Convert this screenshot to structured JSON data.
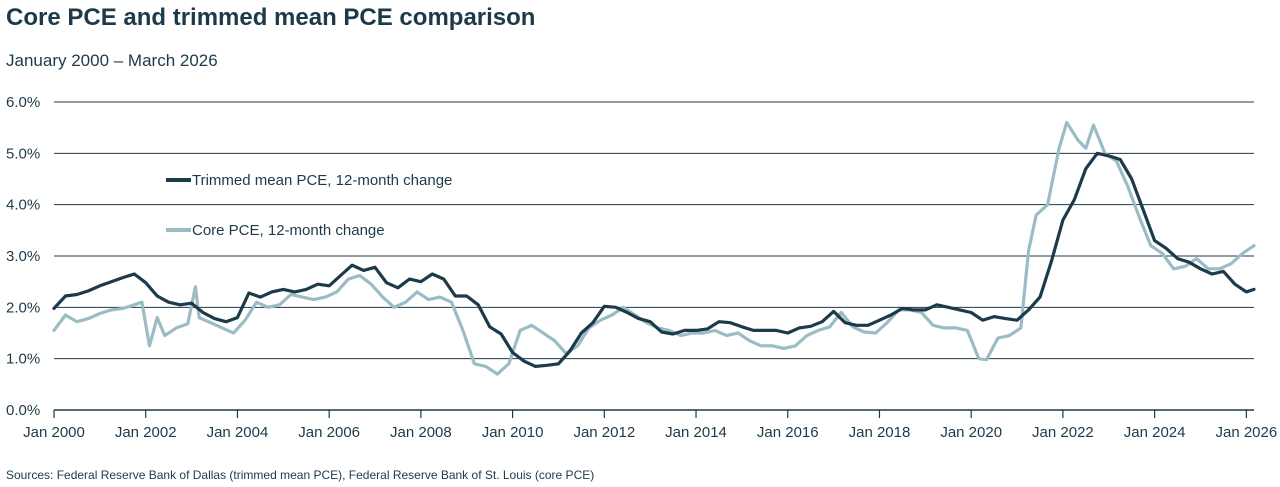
{
  "title": "Core PCE and trimmed mean PCE comparison",
  "subtitle": "January 2000 – March 2026",
  "source": "Sources: Federal Reserve Bank of Dallas (trimmed mean PCE), Federal Reserve Bank of St. Louis (core PCE)",
  "colors": {
    "trimmed": "#1d3a4a",
    "core": "#9bbcc4",
    "grid": "#1d3a4a",
    "text": "#1d3a4a"
  },
  "chart_data": {
    "type": "line",
    "title": "Core PCE and trimmed mean PCE comparison",
    "subtitle": "January 2000 – March 2026",
    "xlim": [
      "2000-01",
      "2026-03"
    ],
    "ylim": [
      0,
      6
    ],
    "y_ticks": [
      0,
      1,
      2,
      3,
      4,
      5,
      6
    ],
    "y_tick_labels": [
      "0.0%",
      "1.0%",
      "2.0%",
      "3.0%",
      "4.0%",
      "5.0%",
      "6.0%"
    ],
    "x_ticks": [
      "2000-01",
      "2002-01",
      "2004-01",
      "2006-01",
      "2008-01",
      "2010-01",
      "2012-01",
      "2014-01",
      "2016-01",
      "2018-01",
      "2020-01",
      "2022-01",
      "2024-01",
      "2026-01"
    ],
    "x_tick_labels": [
      "Jan 2000",
      "Jan 2002",
      "Jan 2004",
      "Jan 2006",
      "Jan 2008",
      "Jan 2010",
      "Jan 2012",
      "Jan 2014",
      "Jan 2016",
      "Jan 2018",
      "Jan 2020",
      "Jan 2022",
      "Jan 2024",
      "Jan 2026"
    ],
    "grid": "horizontal",
    "legend_position": "upper-left",
    "series": [
      {
        "name": "Trimmed mean PCE, 12-month change",
        "color": "#1d3a4a",
        "points": [
          [
            "2000-01",
            1.98
          ],
          [
            "2000-04",
            2.22
          ],
          [
            "2000-07",
            2.25
          ],
          [
            "2000-10",
            2.32
          ],
          [
            "2001-01",
            2.42
          ],
          [
            "2001-04",
            2.5
          ],
          [
            "2001-07",
            2.58
          ],
          [
            "2001-10",
            2.65
          ],
          [
            "2002-01",
            2.48
          ],
          [
            "2002-04",
            2.22
          ],
          [
            "2002-07",
            2.1
          ],
          [
            "2002-10",
            2.05
          ],
          [
            "2003-01",
            2.08
          ],
          [
            "2003-04",
            1.9
          ],
          [
            "2003-07",
            1.78
          ],
          [
            "2003-10",
            1.72
          ],
          [
            "2004-01",
            1.8
          ],
          [
            "2004-04",
            2.28
          ],
          [
            "2004-07",
            2.2
          ],
          [
            "2004-10",
            2.3
          ],
          [
            "2005-01",
            2.35
          ],
          [
            "2005-04",
            2.3
          ],
          [
            "2005-07",
            2.35
          ],
          [
            "2005-10",
            2.45
          ],
          [
            "2006-01",
            2.42
          ],
          [
            "2006-04",
            2.62
          ],
          [
            "2006-07",
            2.82
          ],
          [
            "2006-10",
            2.72
          ],
          [
            "2007-01",
            2.78
          ],
          [
            "2007-04",
            2.48
          ],
          [
            "2007-07",
            2.38
          ],
          [
            "2007-10",
            2.55
          ],
          [
            "2008-01",
            2.5
          ],
          [
            "2008-04",
            2.65
          ],
          [
            "2008-07",
            2.55
          ],
          [
            "2008-10",
            2.22
          ],
          [
            "2009-01",
            2.22
          ],
          [
            "2009-04",
            2.05
          ],
          [
            "2009-07",
            1.62
          ],
          [
            "2009-10",
            1.48
          ],
          [
            "2010-01",
            1.12
          ],
          [
            "2010-04",
            0.95
          ],
          [
            "2010-07",
            0.85
          ],
          [
            "2010-10",
            0.87
          ],
          [
            "2011-01",
            0.9
          ],
          [
            "2011-04",
            1.15
          ],
          [
            "2011-07",
            1.5
          ],
          [
            "2011-10",
            1.7
          ],
          [
            "2012-01",
            2.02
          ],
          [
            "2012-04",
            2.0
          ],
          [
            "2012-07",
            1.9
          ],
          [
            "2012-10",
            1.78
          ],
          [
            "2013-01",
            1.72
          ],
          [
            "2013-04",
            1.52
          ],
          [
            "2013-07",
            1.48
          ],
          [
            "2013-10",
            1.55
          ],
          [
            "2014-01",
            1.55
          ],
          [
            "2014-04",
            1.58
          ],
          [
            "2014-07",
            1.72
          ],
          [
            "2014-10",
            1.7
          ],
          [
            "2015-01",
            1.62
          ],
          [
            "2015-04",
            1.55
          ],
          [
            "2015-07",
            1.55
          ],
          [
            "2015-10",
            1.55
          ],
          [
            "2016-01",
            1.5
          ],
          [
            "2016-04",
            1.6
          ],
          [
            "2016-07",
            1.63
          ],
          [
            "2016-10",
            1.72
          ],
          [
            "2017-01",
            1.92
          ],
          [
            "2017-04",
            1.7
          ],
          [
            "2017-07",
            1.65
          ],
          [
            "2017-10",
            1.65
          ],
          [
            "2018-01",
            1.75
          ],
          [
            "2018-04",
            1.85
          ],
          [
            "2018-07",
            1.98
          ],
          [
            "2018-10",
            1.95
          ],
          [
            "2019-01",
            1.95
          ],
          [
            "2019-04",
            2.05
          ],
          [
            "2019-07",
            2.0
          ],
          [
            "2019-10",
            1.95
          ],
          [
            "2020-01",
            1.9
          ],
          [
            "2020-04",
            1.75
          ],
          [
            "2020-07",
            1.82
          ],
          [
            "2020-10",
            1.78
          ],
          [
            "2021-01",
            1.75
          ],
          [
            "2021-04",
            1.95
          ],
          [
            "2021-07",
            2.2
          ],
          [
            "2021-10",
            2.9
          ],
          [
            "2022-01",
            3.7
          ],
          [
            "2022-04",
            4.1
          ],
          [
            "2022-07",
            4.7
          ],
          [
            "2022-10",
            5.0
          ],
          [
            "2023-01",
            4.95
          ],
          [
            "2023-04",
            4.88
          ],
          [
            "2023-07",
            4.5
          ],
          [
            "2023-10",
            3.9
          ],
          [
            "2024-01",
            3.3
          ],
          [
            "2024-04",
            3.15
          ],
          [
            "2024-07",
            2.95
          ],
          [
            "2024-10",
            2.88
          ],
          [
            "2025-01",
            2.75
          ],
          [
            "2025-04",
            2.65
          ],
          [
            "2025-07",
            2.7
          ],
          [
            "2025-10",
            2.45
          ],
          [
            "2026-01",
            2.3
          ],
          [
            "2026-03",
            2.35
          ]
        ]
      },
      {
        "name": "Core PCE, 12-month change",
        "color": "#9bbcc4",
        "points": [
          [
            "2000-01",
            1.55
          ],
          [
            "2000-04",
            1.85
          ],
          [
            "2000-07",
            1.72
          ],
          [
            "2000-10",
            1.78
          ],
          [
            "2001-01",
            1.88
          ],
          [
            "2001-04",
            1.95
          ],
          [
            "2001-07",
            1.98
          ],
          [
            "2001-10",
            2.05
          ],
          [
            "2001-12",
            2.1
          ],
          [
            "2002-02",
            1.25
          ],
          [
            "2002-04",
            1.8
          ],
          [
            "2002-06",
            1.45
          ],
          [
            "2002-09",
            1.6
          ],
          [
            "2002-12",
            1.68
          ],
          [
            "2003-02",
            2.4
          ],
          [
            "2003-03",
            1.8
          ],
          [
            "2003-06",
            1.7
          ],
          [
            "2003-09",
            1.6
          ],
          [
            "2003-12",
            1.5
          ],
          [
            "2004-03",
            1.75
          ],
          [
            "2004-06",
            2.1
          ],
          [
            "2004-09",
            2.0
          ],
          [
            "2004-12",
            2.05
          ],
          [
            "2005-03",
            2.25
          ],
          [
            "2005-06",
            2.2
          ],
          [
            "2005-09",
            2.15
          ],
          [
            "2005-12",
            2.2
          ],
          [
            "2006-03",
            2.3
          ],
          [
            "2006-06",
            2.55
          ],
          [
            "2006-09",
            2.62
          ],
          [
            "2006-12",
            2.45
          ],
          [
            "2007-03",
            2.2
          ],
          [
            "2007-06",
            2.0
          ],
          [
            "2007-09",
            2.1
          ],
          [
            "2007-12",
            2.3
          ],
          [
            "2008-03",
            2.15
          ],
          [
            "2008-06",
            2.2
          ],
          [
            "2008-09",
            2.1
          ],
          [
            "2008-12",
            1.55
          ],
          [
            "2009-03",
            0.9
          ],
          [
            "2009-06",
            0.85
          ],
          [
            "2009-09",
            0.7
          ],
          [
            "2009-12",
            0.9
          ],
          [
            "2010-03",
            1.55
          ],
          [
            "2010-06",
            1.65
          ],
          [
            "2010-09",
            1.5
          ],
          [
            "2010-12",
            1.35
          ],
          [
            "2011-03",
            1.1
          ],
          [
            "2011-06",
            1.25
          ],
          [
            "2011-09",
            1.6
          ],
          [
            "2011-12",
            1.75
          ],
          [
            "2012-03",
            1.85
          ],
          [
            "2012-06",
            2.0
          ],
          [
            "2012-09",
            1.85
          ],
          [
            "2012-12",
            1.7
          ],
          [
            "2013-03",
            1.6
          ],
          [
            "2013-06",
            1.55
          ],
          [
            "2013-09",
            1.45
          ],
          [
            "2013-12",
            1.5
          ],
          [
            "2014-03",
            1.5
          ],
          [
            "2014-06",
            1.55
          ],
          [
            "2014-09",
            1.45
          ],
          [
            "2014-12",
            1.5
          ],
          [
            "2015-03",
            1.35
          ],
          [
            "2015-06",
            1.25
          ],
          [
            "2015-09",
            1.25
          ],
          [
            "2015-12",
            1.2
          ],
          [
            "2016-03",
            1.25
          ],
          [
            "2016-06",
            1.45
          ],
          [
            "2016-09",
            1.55
          ],
          [
            "2016-12",
            1.62
          ],
          [
            "2017-03",
            1.9
          ],
          [
            "2017-06",
            1.62
          ],
          [
            "2017-09",
            1.52
          ],
          [
            "2017-12",
            1.5
          ],
          [
            "2018-03",
            1.7
          ],
          [
            "2018-06",
            1.95
          ],
          [
            "2018-09",
            1.95
          ],
          [
            "2018-12",
            1.9
          ],
          [
            "2019-03",
            1.65
          ],
          [
            "2019-06",
            1.6
          ],
          [
            "2019-09",
            1.6
          ],
          [
            "2019-12",
            1.55
          ],
          [
            "2020-03",
            1.0
          ],
          [
            "2020-05",
            0.98
          ],
          [
            "2020-08",
            1.4
          ],
          [
            "2020-11",
            1.45
          ],
          [
            "2021-02",
            1.6
          ],
          [
            "2021-04",
            3.1
          ],
          [
            "2021-06",
            3.8
          ],
          [
            "2021-09",
            4.0
          ],
          [
            "2021-12",
            5.1
          ],
          [
            "2022-02",
            5.6
          ],
          [
            "2022-05",
            5.25
          ],
          [
            "2022-07",
            5.1
          ],
          [
            "2022-09",
            5.55
          ],
          [
            "2022-12",
            5.0
          ],
          [
            "2023-03",
            4.85
          ],
          [
            "2023-06",
            4.35
          ],
          [
            "2023-09",
            3.75
          ],
          [
            "2023-12",
            3.2
          ],
          [
            "2024-03",
            3.05
          ],
          [
            "2024-06",
            2.75
          ],
          [
            "2024-09",
            2.8
          ],
          [
            "2024-12",
            2.95
          ],
          [
            "2025-03",
            2.75
          ],
          [
            "2025-06",
            2.75
          ],
          [
            "2025-09",
            2.85
          ],
          [
            "2025-12",
            3.05
          ],
          [
            "2026-03",
            3.2
          ]
        ]
      }
    ]
  }
}
